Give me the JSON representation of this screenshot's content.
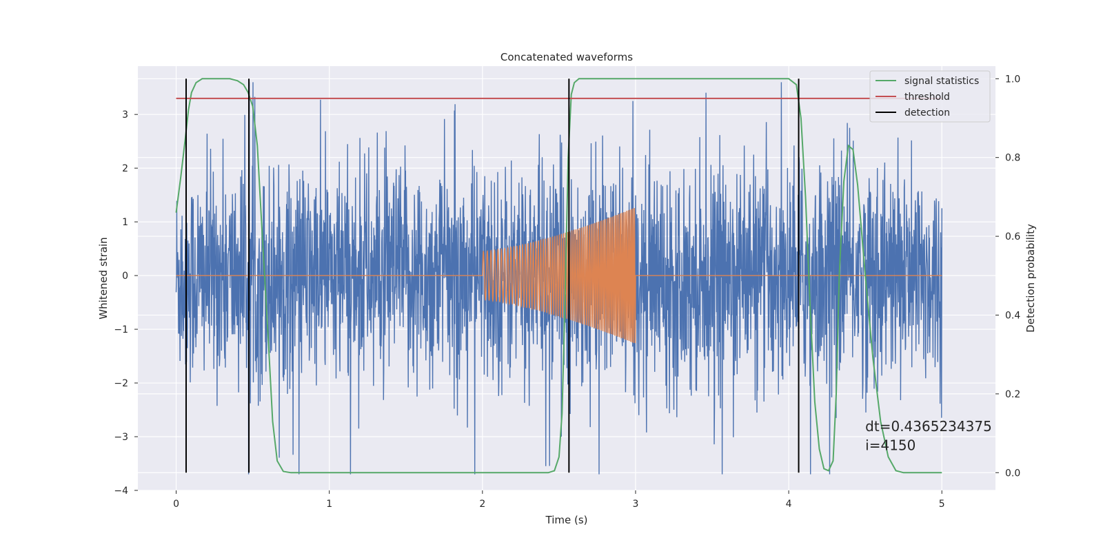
{
  "chart_data": {
    "type": "line",
    "title": "Concatenated waveforms",
    "xlabel": "Time (s)",
    "ylabel_left": "Whitened strain",
    "ylabel_right": "Detection probability",
    "xlim": [
      -0.25,
      5.35
    ],
    "ylim_left": [
      -4.0,
      3.9
    ],
    "ylim_right": [
      -0.045,
      1.032
    ],
    "x_ticks": [
      0,
      1,
      2,
      3,
      4,
      5
    ],
    "y_ticks_left": [
      -4,
      -3,
      -2,
      -1,
      0,
      1,
      2,
      3
    ],
    "y_ticks_right": [
      0.0,
      0.2,
      0.4,
      0.6,
      0.8,
      1.0
    ],
    "y_tick_labels_left": [
      "−4",
      "−3",
      "−2",
      "−1",
      "0",
      "1",
      "2",
      "3"
    ],
    "y_tick_labels_right": [
      "0.0",
      "0.2",
      "0.4",
      "0.6",
      "0.8",
      "1.0"
    ],
    "grid": true,
    "background": "#eaeaf2",
    "legend": {
      "position": "top-right",
      "entries": [
        "signal statistics",
        "threshold",
        "detection"
      ]
    },
    "series": [
      {
        "name": "noise",
        "axis": "left",
        "color": "#4c72b0",
        "kind": "noise",
        "x_range": [
          0,
          5
        ],
        "core_amplitude": 1.0,
        "peak_range": [
          -3.7,
          3.6
        ]
      },
      {
        "name": "chirp",
        "axis": "left",
        "color": "#dd8452",
        "kind": "chirp",
        "x_range": [
          0,
          5
        ],
        "zero_outside": true,
        "active_range": [
          2.0,
          3.0
        ],
        "amp_start": 0.45,
        "amp_end": 1.27,
        "cycles": 70
      },
      {
        "name": "signal statistics",
        "axis": "right",
        "color": "#55a868",
        "points": [
          [
            0.0,
            0.66
          ],
          [
            0.03,
            0.75
          ],
          [
            0.06,
            0.85
          ],
          [
            0.08,
            0.92
          ],
          [
            0.1,
            0.965
          ],
          [
            0.13,
            0.99
          ],
          [
            0.17,
            1.0
          ],
          [
            0.35,
            1.0
          ],
          [
            0.4,
            0.995
          ],
          [
            0.44,
            0.985
          ],
          [
            0.47,
            0.965
          ],
          [
            0.5,
            0.93
          ],
          [
            0.53,
            0.83
          ],
          [
            0.56,
            0.62
          ],
          [
            0.6,
            0.35
          ],
          [
            0.63,
            0.13
          ],
          [
            0.66,
            0.03
          ],
          [
            0.7,
            0.003
          ],
          [
            0.75,
            0.0
          ],
          [
            2.43,
            0.0
          ],
          [
            2.47,
            0.005
          ],
          [
            2.5,
            0.04
          ],
          [
            2.52,
            0.15
          ],
          [
            2.54,
            0.45
          ],
          [
            2.56,
            0.8
          ],
          [
            2.58,
            0.96
          ],
          [
            2.6,
            0.99
          ],
          [
            2.63,
            1.0
          ],
          [
            4.0,
            1.0
          ],
          [
            4.05,
            0.985
          ],
          [
            4.08,
            0.9
          ],
          [
            4.11,
            0.7
          ],
          [
            4.14,
            0.42
          ],
          [
            4.17,
            0.18
          ],
          [
            4.2,
            0.06
          ],
          [
            4.23,
            0.01
          ],
          [
            4.26,
            0.005
          ],
          [
            4.29,
            0.03
          ],
          [
            4.31,
            0.2
          ],
          [
            4.33,
            0.5
          ],
          [
            4.36,
            0.74
          ],
          [
            4.39,
            0.83
          ],
          [
            4.42,
            0.82
          ],
          [
            4.45,
            0.73
          ],
          [
            4.5,
            0.5
          ],
          [
            4.55,
            0.29
          ],
          [
            4.6,
            0.13
          ],
          [
            4.65,
            0.04
          ],
          [
            4.7,
            0.005
          ],
          [
            4.75,
            0.0
          ],
          [
            5.0,
            0.0
          ]
        ]
      },
      {
        "name": "threshold",
        "axis": "right",
        "color": "#c44e52",
        "points": [
          [
            0.0,
            0.95
          ],
          [
            5.0,
            0.95
          ]
        ]
      },
      {
        "name": "detection",
        "axis": "right",
        "color": "#000000",
        "kind": "vlines",
        "x": [
          0.065,
          0.475,
          2.565,
          4.065
        ],
        "y_range": [
          0.0,
          1.0
        ]
      }
    ],
    "annotations": [
      {
        "text": "dt=0.4365234375",
        "x": 4.5,
        "y": -2.9
      },
      {
        "text": " i=4150",
        "x": 4.5,
        "y": -3.25
      }
    ]
  }
}
